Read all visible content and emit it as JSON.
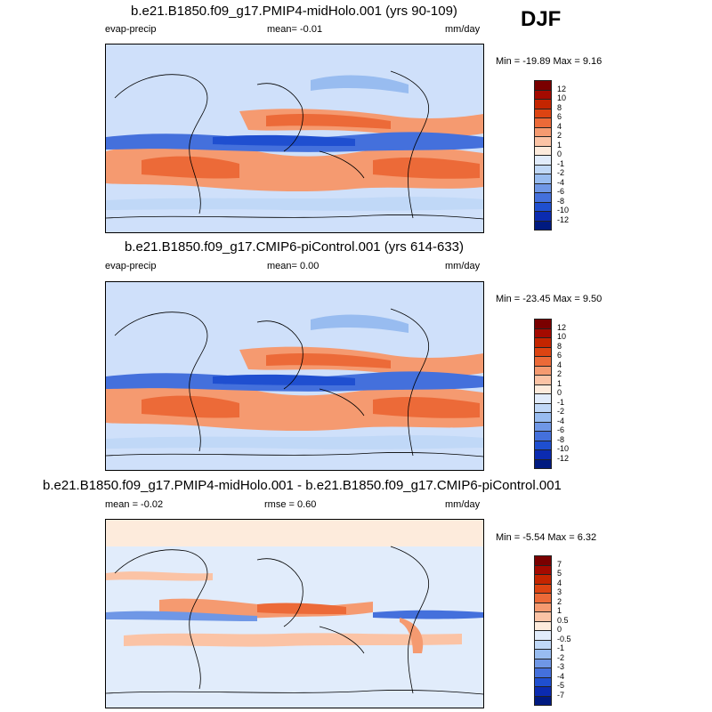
{
  "season": "DJF",
  "panels": [
    {
      "title": "b.e21.B1850.f09_g17.PMIP4-midHolo.001 (yrs 90-109)",
      "left_label": "evap-precip",
      "center_label": "mean=  -0.01",
      "units": "mm/day",
      "minmax": "Min = -19.89 Max =   9.16",
      "colorbar": {
        "labels": [
          "12",
          "10",
          "8",
          "6",
          "4",
          "2",
          "1",
          "0",
          "-1",
          "-2",
          "-4",
          "-6",
          "-8",
          "-10",
          "-12"
        ],
        "colors": [
          "#7a0000",
          "#a40a00",
          "#c42500",
          "#dd4412",
          "#ec6a38",
          "#f59a70",
          "#fbc3a5",
          "#fdebdc",
          "#e1ecfb",
          "#c0d8f7",
          "#98bcf0",
          "#6f97e6",
          "#4470dc",
          "#1f4fd0",
          "#0b2bb0",
          "#001a80"
        ]
      }
    },
    {
      "title": "b.e21.B1850.f09_g17.CMIP6-piControl.001 (yrs 614-633)",
      "left_label": "evap-precip",
      "center_label": "mean=   0.00",
      "units": "mm/day",
      "minmax": "Min = -23.45 Max =   9.50",
      "colorbar": {
        "labels": [
          "12",
          "10",
          "8",
          "6",
          "4",
          "2",
          "1",
          "0",
          "-1",
          "-2",
          "-4",
          "-6",
          "-8",
          "-10",
          "-12"
        ],
        "colors": [
          "#7a0000",
          "#a40a00",
          "#c42500",
          "#dd4412",
          "#ec6a38",
          "#f59a70",
          "#fbc3a5",
          "#fdebdc",
          "#e1ecfb",
          "#c0d8f7",
          "#98bcf0",
          "#6f97e6",
          "#4470dc",
          "#1f4fd0",
          "#0b2bb0",
          "#001a80"
        ]
      }
    },
    {
      "title": "b.e21.B1850.f09_g17.PMIP4-midHolo.001 - b.e21.B1850.f09_g17.CMIP6-piControl.001",
      "left_label": "mean =  -0.02",
      "center_label": "rmse =   0.60",
      "units": "mm/day",
      "minmax": "Min =  -5.54 Max =   6.32",
      "colorbar": {
        "labels": [
          "7",
          "5",
          "4",
          "3",
          "2",
          "1",
          "0.5",
          "0",
          "-0.5",
          "-1",
          "-2",
          "-3",
          "-4",
          "-5",
          "-7"
        ],
        "colors": [
          "#7a0000",
          "#a40a00",
          "#c42500",
          "#dd4412",
          "#ec6a38",
          "#f59a70",
          "#fbc3a5",
          "#fdebdc",
          "#e1ecfb",
          "#c0d8f7",
          "#98bcf0",
          "#6f97e6",
          "#4470dc",
          "#1f4fd0",
          "#0b2bb0",
          "#001a80"
        ]
      }
    }
  ],
  "chart_data": [
    {
      "type": "heatmap",
      "title": "b.e21.B1850.f09_g17.PMIP4-midHolo.001 (yrs 90-109)",
      "variable": "evap-precip",
      "units": "mm/day",
      "mean": -0.01,
      "min": -19.89,
      "max": 9.16,
      "levels": [
        -12,
        -10,
        -8,
        -6,
        -4,
        -2,
        -1,
        0,
        1,
        2,
        4,
        6,
        8,
        10,
        12
      ]
    },
    {
      "type": "heatmap",
      "title": "b.e21.B1850.f09_g17.CMIP6-piControl.001 (yrs 614-633)",
      "variable": "evap-precip",
      "units": "mm/day",
      "mean": 0.0,
      "min": -23.45,
      "max": 9.5,
      "levels": [
        -12,
        -10,
        -8,
        -6,
        -4,
        -2,
        -1,
        0,
        1,
        2,
        4,
        6,
        8,
        10,
        12
      ]
    },
    {
      "type": "heatmap",
      "title": "b.e21.B1850.f09_g17.PMIP4-midHolo.001 - b.e21.B1850.f09_g17.CMIP6-piControl.001",
      "units": "mm/day",
      "mean": -0.02,
      "rmse": 0.6,
      "min": -5.54,
      "max": 6.32,
      "levels": [
        -7,
        -5,
        -4,
        -3,
        -2,
        -1,
        -0.5,
        0,
        0.5,
        1,
        2,
        3,
        4,
        5,
        7
      ]
    }
  ]
}
